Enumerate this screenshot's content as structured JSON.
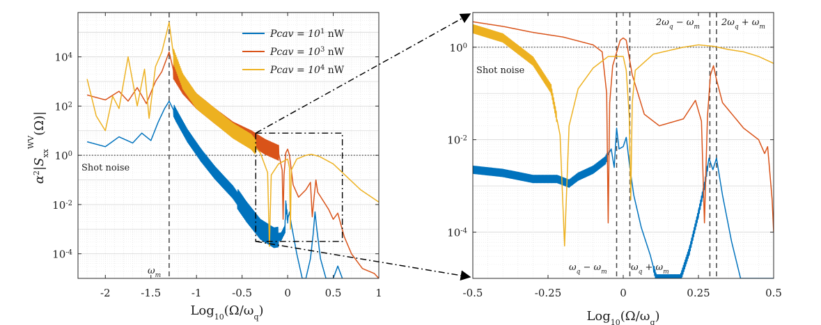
{
  "chart_data": [
    {
      "type": "line",
      "id": "left",
      "xlabel": "Log10(Ω/ωq)",
      "ylabel": "α²|S_xx^WV(Ω)|",
      "xlim": [
        -2.3,
        1.0
      ],
      "ylim_log10": [
        -5.0,
        5.8
      ],
      "x_ticks": [
        -2,
        -1.5,
        -1,
        -0.5,
        0,
        0.5,
        1
      ],
      "x_tick_labels": [
        "-2",
        "-1.5",
        "-1",
        "-0.5",
        "0",
        "0.5",
        "1"
      ],
      "y_ticks_log10": [
        -4,
        -2,
        0,
        2,
        4
      ],
      "y_tick_labels": [
        "10-4",
        "10-2",
        "100",
        "102",
        "104"
      ],
      "shot_noise_log10": 0,
      "shot_noise_label": "Shot noise",
      "omega_m_x": -1.3,
      "omega_m_label": "ωm",
      "inset_box": {
        "x": [
          -0.35,
          0.6
        ],
        "log10_y": [
          -3.5,
          0.9
        ]
      },
      "series": [
        {
          "name": "P_cav = 10^1 nW",
          "label_main": "Pcav = 10",
          "label_exp": "1",
          "label_unit": " nW",
          "color": "#0072BD",
          "points": [
            [
              -2.2,
              0.55
            ],
            [
              -2.0,
              0.35
            ],
            [
              -1.85,
              0.75
            ],
            [
              -1.7,
              0.5
            ],
            [
              -1.6,
              0.9
            ],
            [
              -1.5,
              0.6
            ],
            [
              -1.42,
              1.35
            ],
            [
              -1.35,
              1.9
            ],
            [
              -1.3,
              2.2
            ],
            [
              -1.22,
              1.6
            ],
            [
              -1.1,
              0.8
            ],
            [
              -0.95,
              0.0
            ],
            [
              -0.8,
              -0.7
            ],
            [
              -0.6,
              -1.5
            ],
            [
              -0.45,
              -2.3
            ],
            [
              -0.3,
              -3.0
            ],
            [
              -0.15,
              -3.35
            ],
            [
              -0.07,
              -3.3
            ],
            [
              -0.03,
              -3.0
            ],
            [
              -0.02,
              -2.0
            ],
            [
              0.0,
              -2.6
            ],
            [
              0.02,
              -2.3
            ],
            [
              0.04,
              -2.8
            ],
            [
              0.1,
              -4.0
            ],
            [
              0.16,
              -5.0
            ],
            [
              0.2,
              -5.0
            ],
            [
              0.25,
              -4.2
            ],
            [
              0.28,
              -3.2
            ],
            [
              0.3,
              -2.3
            ],
            [
              0.32,
              -3.0
            ],
            [
              0.36,
              -4.2
            ],
            [
              0.42,
              -5.0
            ],
            [
              0.5,
              -5.0
            ],
            [
              0.55,
              -4.5
            ],
            [
              0.6,
              -5.0
            ]
          ],
          "ripple": [
            [
              -1.25,
              -0.1,
              0.25
            ],
            [
              -0.55,
              0.0,
              0.15
            ]
          ]
        },
        {
          "name": "P_cav = 10^3 nW",
          "label_main": "Pcav = 10",
          "label_exp": "3",
          "label_unit": " nW",
          "color": "#D95319",
          "points": [
            [
              -2.2,
              2.45
            ],
            [
              -2.0,
              2.25
            ],
            [
              -1.85,
              2.6
            ],
            [
              -1.75,
              2.2
            ],
            [
              -1.65,
              2.75
            ],
            [
              -1.55,
              2.1
            ],
            [
              -1.45,
              3.0
            ],
            [
              -1.38,
              3.4
            ],
            [
              -1.3,
              4.2
            ],
            [
              -1.25,
              3.4
            ],
            [
              -1.15,
              2.8
            ],
            [
              -1.0,
              2.2
            ],
            [
              -0.8,
              1.6
            ],
            [
              -0.6,
              1.05
            ],
            [
              -0.4,
              0.7
            ],
            [
              -0.25,
              0.35
            ],
            [
              -0.1,
              0.1
            ],
            [
              -0.06,
              -0.6
            ],
            [
              -0.05,
              -2.6
            ],
            [
              -0.04,
              -0.8
            ],
            [
              -0.02,
              0.1
            ],
            [
              0.0,
              0.25
            ],
            [
              0.02,
              0.0
            ],
            [
              0.06,
              -1.2
            ],
            [
              0.12,
              -1.7
            ],
            [
              0.2,
              -1.4
            ],
            [
              0.25,
              -1.1
            ],
            [
              0.27,
              -2.5
            ],
            [
              0.29,
              -1.7
            ],
            [
              0.31,
              -1.0
            ],
            [
              0.33,
              -1.5
            ],
            [
              0.45,
              -2.2
            ],
            [
              0.5,
              -2.6
            ],
            [
              0.55,
              -2.35
            ],
            [
              0.62,
              -3.3
            ],
            [
              0.7,
              -4.0
            ],
            [
              0.82,
              -4.6
            ],
            [
              0.95,
              -4.8
            ],
            [
              1.0,
              -5.0
            ]
          ],
          "ripple": [
            [
              -1.25,
              -0.1,
              0.3
            ]
          ]
        },
        {
          "name": "P_cav = 10^4 nW",
          "label_main": "Pcav = 10",
          "label_exp": "4",
          "label_unit": " nW",
          "color": "#EDB120",
          "points": [
            [
              -2.2,
              3.1
            ],
            [
              -2.1,
              1.6
            ],
            [
              -2.0,
              1.0
            ],
            [
              -1.92,
              2.4
            ],
            [
              -1.85,
              1.9
            ],
            [
              -1.75,
              4.0
            ],
            [
              -1.65,
              2.0
            ],
            [
              -1.57,
              3.5
            ],
            [
              -1.52,
              1.5
            ],
            [
              -1.45,
              3.6
            ],
            [
              -1.38,
              4.2
            ],
            [
              -1.3,
              5.4
            ],
            [
              -1.25,
              4.0
            ],
            [
              -1.15,
              3.0
            ],
            [
              -1.0,
              2.2
            ],
            [
              -0.8,
              1.6
            ],
            [
              -0.6,
              1.0
            ],
            [
              -0.4,
              0.55
            ],
            [
              -0.3,
              0.1
            ],
            [
              -0.22,
              -0.7
            ],
            [
              -0.2,
              -3.7
            ],
            [
              -0.18,
              -0.8
            ],
            [
              -0.1,
              -0.35
            ],
            [
              0.0,
              -0.15
            ],
            [
              0.02,
              -0.5
            ],
            [
              0.03,
              -3.0
            ],
            [
              0.04,
              -0.6
            ],
            [
              0.1,
              -0.15
            ],
            [
              0.2,
              0.0
            ],
            [
              0.26,
              0.04
            ],
            [
              0.35,
              -0.05
            ],
            [
              0.5,
              -0.35
            ],
            [
              0.6,
              -0.7
            ],
            [
              0.8,
              -1.4
            ],
            [
              1.0,
              -1.9
            ]
          ],
          "ripple": [
            [
              -1.25,
              -0.35,
              0.3
            ]
          ]
        }
      ]
    },
    {
      "type": "line",
      "id": "right",
      "xlabel": "Log10(Ω/ωq)",
      "xlim": [
        -0.5,
        0.5
      ],
      "ylim_log10": [
        -5.0,
        0.75
      ],
      "x_ticks": [
        -0.5,
        -0.25,
        0,
        0.25,
        0.5
      ],
      "x_tick_labels": [
        "-0.5",
        "-0.25",
        "0",
        "0.25",
        "0.5"
      ],
      "y_ticks_log10": [
        -4,
        -2,
        0
      ],
      "y_tick_labels": [
        "10-4",
        "10-2",
        "100"
      ],
      "shot_noise_log10": 0,
      "shot_noise_label": "Shot noise",
      "vlines": [
        {
          "x": -0.022,
          "label": "ωq − ωm",
          "pos": "bottom-left"
        },
        {
          "x": 0.022,
          "label": "ωq + ωm",
          "pos": "bottom-right"
        },
        {
          "x": 0.288,
          "label": "2ωq − ωm",
          "pos": "top-left"
        },
        {
          "x": 0.31,
          "label": "2ωq + ωm",
          "pos": "top-right"
        }
      ],
      "series": [
        {
          "name": "P_cav = 10^1 nW",
          "color": "#0072BD",
          "points": [
            [
              -0.5,
              -2.65
            ],
            [
              -0.4,
              -2.72
            ],
            [
              -0.3,
              -2.85
            ],
            [
              -0.22,
              -2.85
            ],
            [
              -0.18,
              -2.95
            ],
            [
              -0.15,
              -2.8
            ],
            [
              -0.1,
              -2.65
            ],
            [
              -0.06,
              -2.45
            ],
            [
              -0.04,
              -2.2
            ],
            [
              -0.03,
              -2.6
            ],
            [
              -0.022,
              -1.75
            ],
            [
              -0.014,
              -2.2
            ],
            [
              0.0,
              -2.15
            ],
            [
              0.01,
              -1.95
            ],
            [
              0.022,
              -2.6
            ],
            [
              0.035,
              -3.2
            ],
            [
              0.06,
              -3.9
            ],
            [
              0.09,
              -4.5
            ],
            [
              0.11,
              -5.0
            ],
            [
              0.19,
              -5.0
            ],
            [
              0.22,
              -4.4
            ],
            [
              0.25,
              -3.6
            ],
            [
              0.27,
              -3.0
            ],
            [
              0.285,
              -2.4
            ],
            [
              0.298,
              -2.65
            ],
            [
              0.31,
              -2.4
            ],
            [
              0.33,
              -3.2
            ],
            [
              0.36,
              -4.2
            ],
            [
              0.39,
              -5.0
            ],
            [
              0.5,
              -5.0
            ]
          ],
          "ripple": [
            [
              -0.5,
              -0.05,
              0.08
            ],
            [
              0.1,
              0.28,
              0.08
            ]
          ]
        },
        {
          "name": "P_cav = 10^3 nW",
          "color": "#D95319",
          "points": [
            [
              -0.5,
              0.55
            ],
            [
              -0.4,
              0.45
            ],
            [
              -0.3,
              0.32
            ],
            [
              -0.2,
              0.22
            ],
            [
              -0.1,
              0.05
            ],
            [
              -0.07,
              -0.1
            ],
            [
              -0.055,
              -1.0
            ],
            [
              -0.05,
              -3.8
            ],
            [
              -0.045,
              -1.2
            ],
            [
              -0.035,
              -0.4
            ],
            [
              -0.01,
              0.15
            ],
            [
              0.0,
              0.2
            ],
            [
              0.01,
              0.15
            ],
            [
              0.03,
              -0.6
            ],
            [
              0.07,
              -1.45
            ],
            [
              0.12,
              -1.7
            ],
            [
              0.2,
              -1.55
            ],
            [
              0.24,
              -1.15
            ],
            [
              0.26,
              -1.6
            ],
            [
              0.27,
              -3.8
            ],
            [
              0.28,
              -1.5
            ],
            [
              0.29,
              -0.6
            ],
            [
              0.3,
              -0.4
            ],
            [
              0.31,
              -0.7
            ],
            [
              0.33,
              -1.2
            ],
            [
              0.4,
              -1.75
            ],
            [
              0.45,
              -2.0
            ],
            [
              0.47,
              -2.3
            ],
            [
              0.48,
              -2.15
            ],
            [
              0.495,
              -3.3
            ],
            [
              0.5,
              -4.0
            ]
          ]
        },
        {
          "name": "P_cav = 10^4 nW",
          "color": "#EDB120",
          "points": [
            [
              -0.5,
              0.4
            ],
            [
              -0.4,
              0.2
            ],
            [
              -0.3,
              -0.3
            ],
            [
              -0.24,
              -0.9
            ],
            [
              -0.21,
              -1.9
            ],
            [
              -0.195,
              -4.3
            ],
            [
              -0.18,
              -1.7
            ],
            [
              -0.15,
              -0.9
            ],
            [
              -0.1,
              -0.45
            ],
            [
              -0.05,
              -0.2
            ],
            [
              0.0,
              -0.2
            ],
            [
              0.01,
              -0.5
            ],
            [
              0.02,
              -1.5
            ],
            [
              0.025,
              -3.3
            ],
            [
              0.03,
              -1.2
            ],
            [
              0.04,
              -0.5
            ],
            [
              0.1,
              -0.15
            ],
            [
              0.2,
              0.0
            ],
            [
              0.25,
              0.05
            ],
            [
              0.3,
              0.02
            ],
            [
              0.35,
              -0.05
            ],
            [
              0.4,
              -0.1
            ],
            [
              0.45,
              -0.2
            ],
            [
              0.5,
              -0.35
            ]
          ],
          "ripple": [
            [
              -0.5,
              -0.22,
              0.09
            ]
          ]
        }
      ]
    }
  ]
}
